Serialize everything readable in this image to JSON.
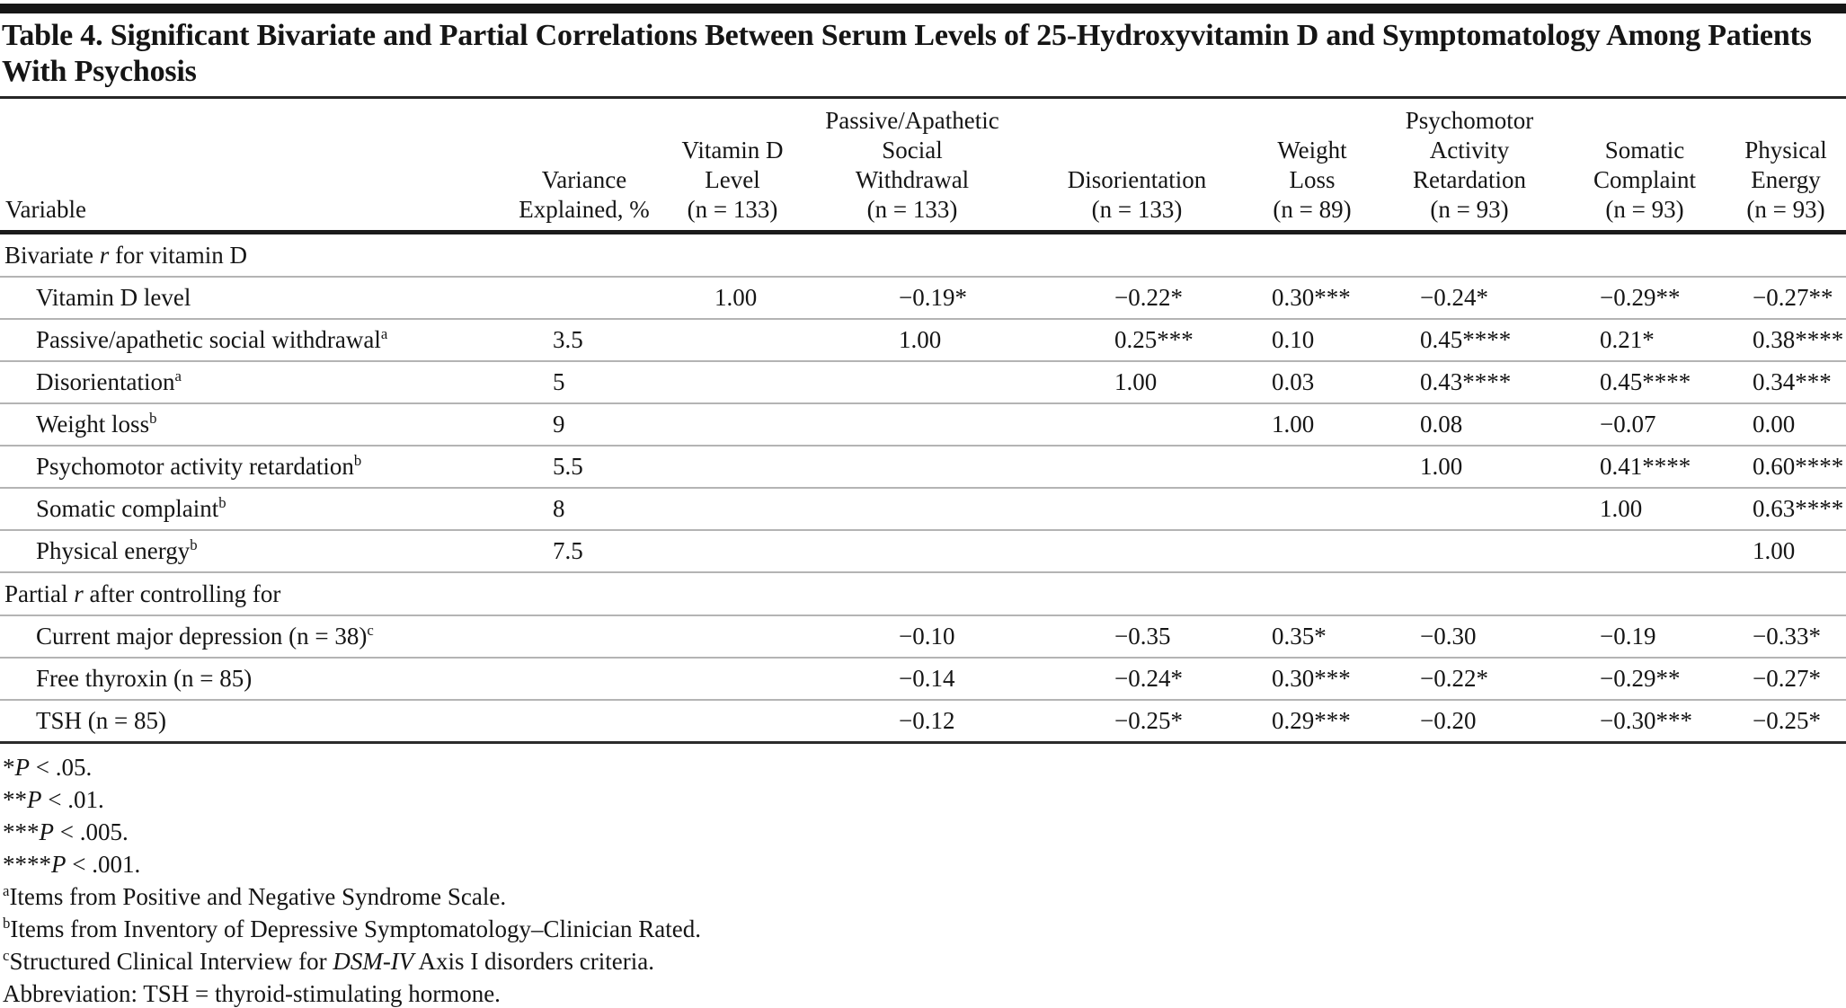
{
  "page": {
    "title": "Table 4. Significant Bivariate and Partial Correlations Between Serum Levels of 25-Hydroxyvitamin D and Symptomatology Among Patients With Psychosis"
  },
  "table": {
    "columns": [
      {
        "key": "variable",
        "lines": [
          "Variable"
        ]
      },
      {
        "key": "variance-explained",
        "lines": [
          "Variance",
          "Explained, %"
        ]
      },
      {
        "key": "vitamin-d-level",
        "lines": [
          "Vitamin D",
          "Level",
          "(n = 133)"
        ]
      },
      {
        "key": "passive-apathetic-social-withdrawal",
        "lines": [
          "Passive/Apathetic",
          "Social",
          "Withdrawal",
          "(n = 133)"
        ]
      },
      {
        "key": "disorientation",
        "lines": [
          "Disorientation",
          "(n = 133)"
        ]
      },
      {
        "key": "weight-loss",
        "lines": [
          "Weight",
          "Loss",
          "(n = 89)"
        ]
      },
      {
        "key": "psychomotor-activity-retardation",
        "lines": [
          "Psychomotor",
          "Activity",
          "Retardation",
          "(n = 93)"
        ]
      },
      {
        "key": "somatic-complaint",
        "lines": [
          "Somatic",
          "Complaint",
          "(n = 93)"
        ]
      },
      {
        "key": "physical-energy",
        "lines": [
          "Physical",
          "Energy",
          "(n = 93)"
        ]
      }
    ],
    "sections": [
      {
        "label": {
          "pre": "Bivariate ",
          "italic": "r",
          "post": " for vitamin D"
        },
        "rows": [
          {
            "label": "Vitamin D level",
            "sup": "",
            "values": [
              "",
              "1.00",
              "−0.19*",
              "−0.22*",
              "0.30***",
              "−0.24*",
              "−0.29**",
              "−0.27**"
            ]
          },
          {
            "label": "Passive/apathetic social withdrawal",
            "sup": "a",
            "values": [
              "3.5",
              "",
              "1.00",
              "0.25***",
              "0.10",
              "0.45****",
              "0.21*",
              "0.38****"
            ]
          },
          {
            "label": "Disorientation",
            "sup": "a",
            "values": [
              "5",
              "",
              "",
              "1.00",
              "0.03",
              "0.43****",
              "0.45****",
              "0.34***"
            ]
          },
          {
            "label": "Weight loss",
            "sup": "b",
            "values": [
              "9",
              "",
              "",
              "",
              "1.00",
              "0.08",
              "−0.07",
              "0.00"
            ]
          },
          {
            "label": "Psychomotor activity retardation",
            "sup": "b",
            "values": [
              "5.5",
              "",
              "",
              "",
              "",
              "1.00",
              "0.41****",
              "0.60****"
            ]
          },
          {
            "label": "Somatic complaint",
            "sup": "b",
            "values": [
              "8",
              "",
              "",
              "",
              "",
              "",
              "1.00",
              "0.63****"
            ]
          },
          {
            "label": "Physical energy",
            "sup": "b",
            "values": [
              "7.5",
              "",
              "",
              "",
              "",
              "",
              "",
              "1.00"
            ]
          }
        ]
      },
      {
        "label": {
          "pre": "Partial ",
          "italic": "r",
          "post": " after controlling for"
        },
        "rows": [
          {
            "label": "Current major depression (n = 38)",
            "sup": "c",
            "values": [
              "",
              "",
              "−0.10",
              "−0.35",
              "0.35*",
              "−0.30",
              "−0.19",
              "−0.33*"
            ]
          },
          {
            "label": "Free thyroxin (n = 85)",
            "sup": "",
            "values": [
              "",
              "",
              "−0.14",
              "−0.24*",
              "0.30***",
              "−0.22*",
              "−0.29**",
              "−0.27*"
            ]
          },
          {
            "label": "TSH (n = 85)",
            "sup": "",
            "values": [
              "",
              "",
              "−0.12",
              "−0.25*",
              "0.29***",
              "−0.20",
              "−0.30***",
              "−0.25*"
            ]
          }
        ]
      }
    ]
  },
  "footnotes": [
    {
      "sup": "",
      "pre": "*",
      "italic": "P",
      "post": " < .05."
    },
    {
      "sup": "",
      "pre": "**",
      "italic": "P",
      "post": " < .01."
    },
    {
      "sup": "",
      "pre": "***",
      "italic": "P",
      "post": " < .005."
    },
    {
      "sup": "",
      "pre": "****",
      "italic": "P",
      "post": " < .001."
    },
    {
      "sup": "a",
      "pre": "Items from Positive and Negative Syndrome Scale.",
      "italic": "",
      "post": ""
    },
    {
      "sup": "b",
      "pre": "Items from Inventory of Depressive Symptomatology–Clinician Rated.",
      "italic": "",
      "post": ""
    },
    {
      "sup": "c",
      "pre": "Structured Clinical Interview for ",
      "italic": "DSM-IV",
      "post": " Axis I disorders criteria."
    },
    {
      "sup": "",
      "pre": "Abbreviation: TSH = thyroid-stimulating hormone.",
      "italic": "",
      "post": ""
    }
  ]
}
